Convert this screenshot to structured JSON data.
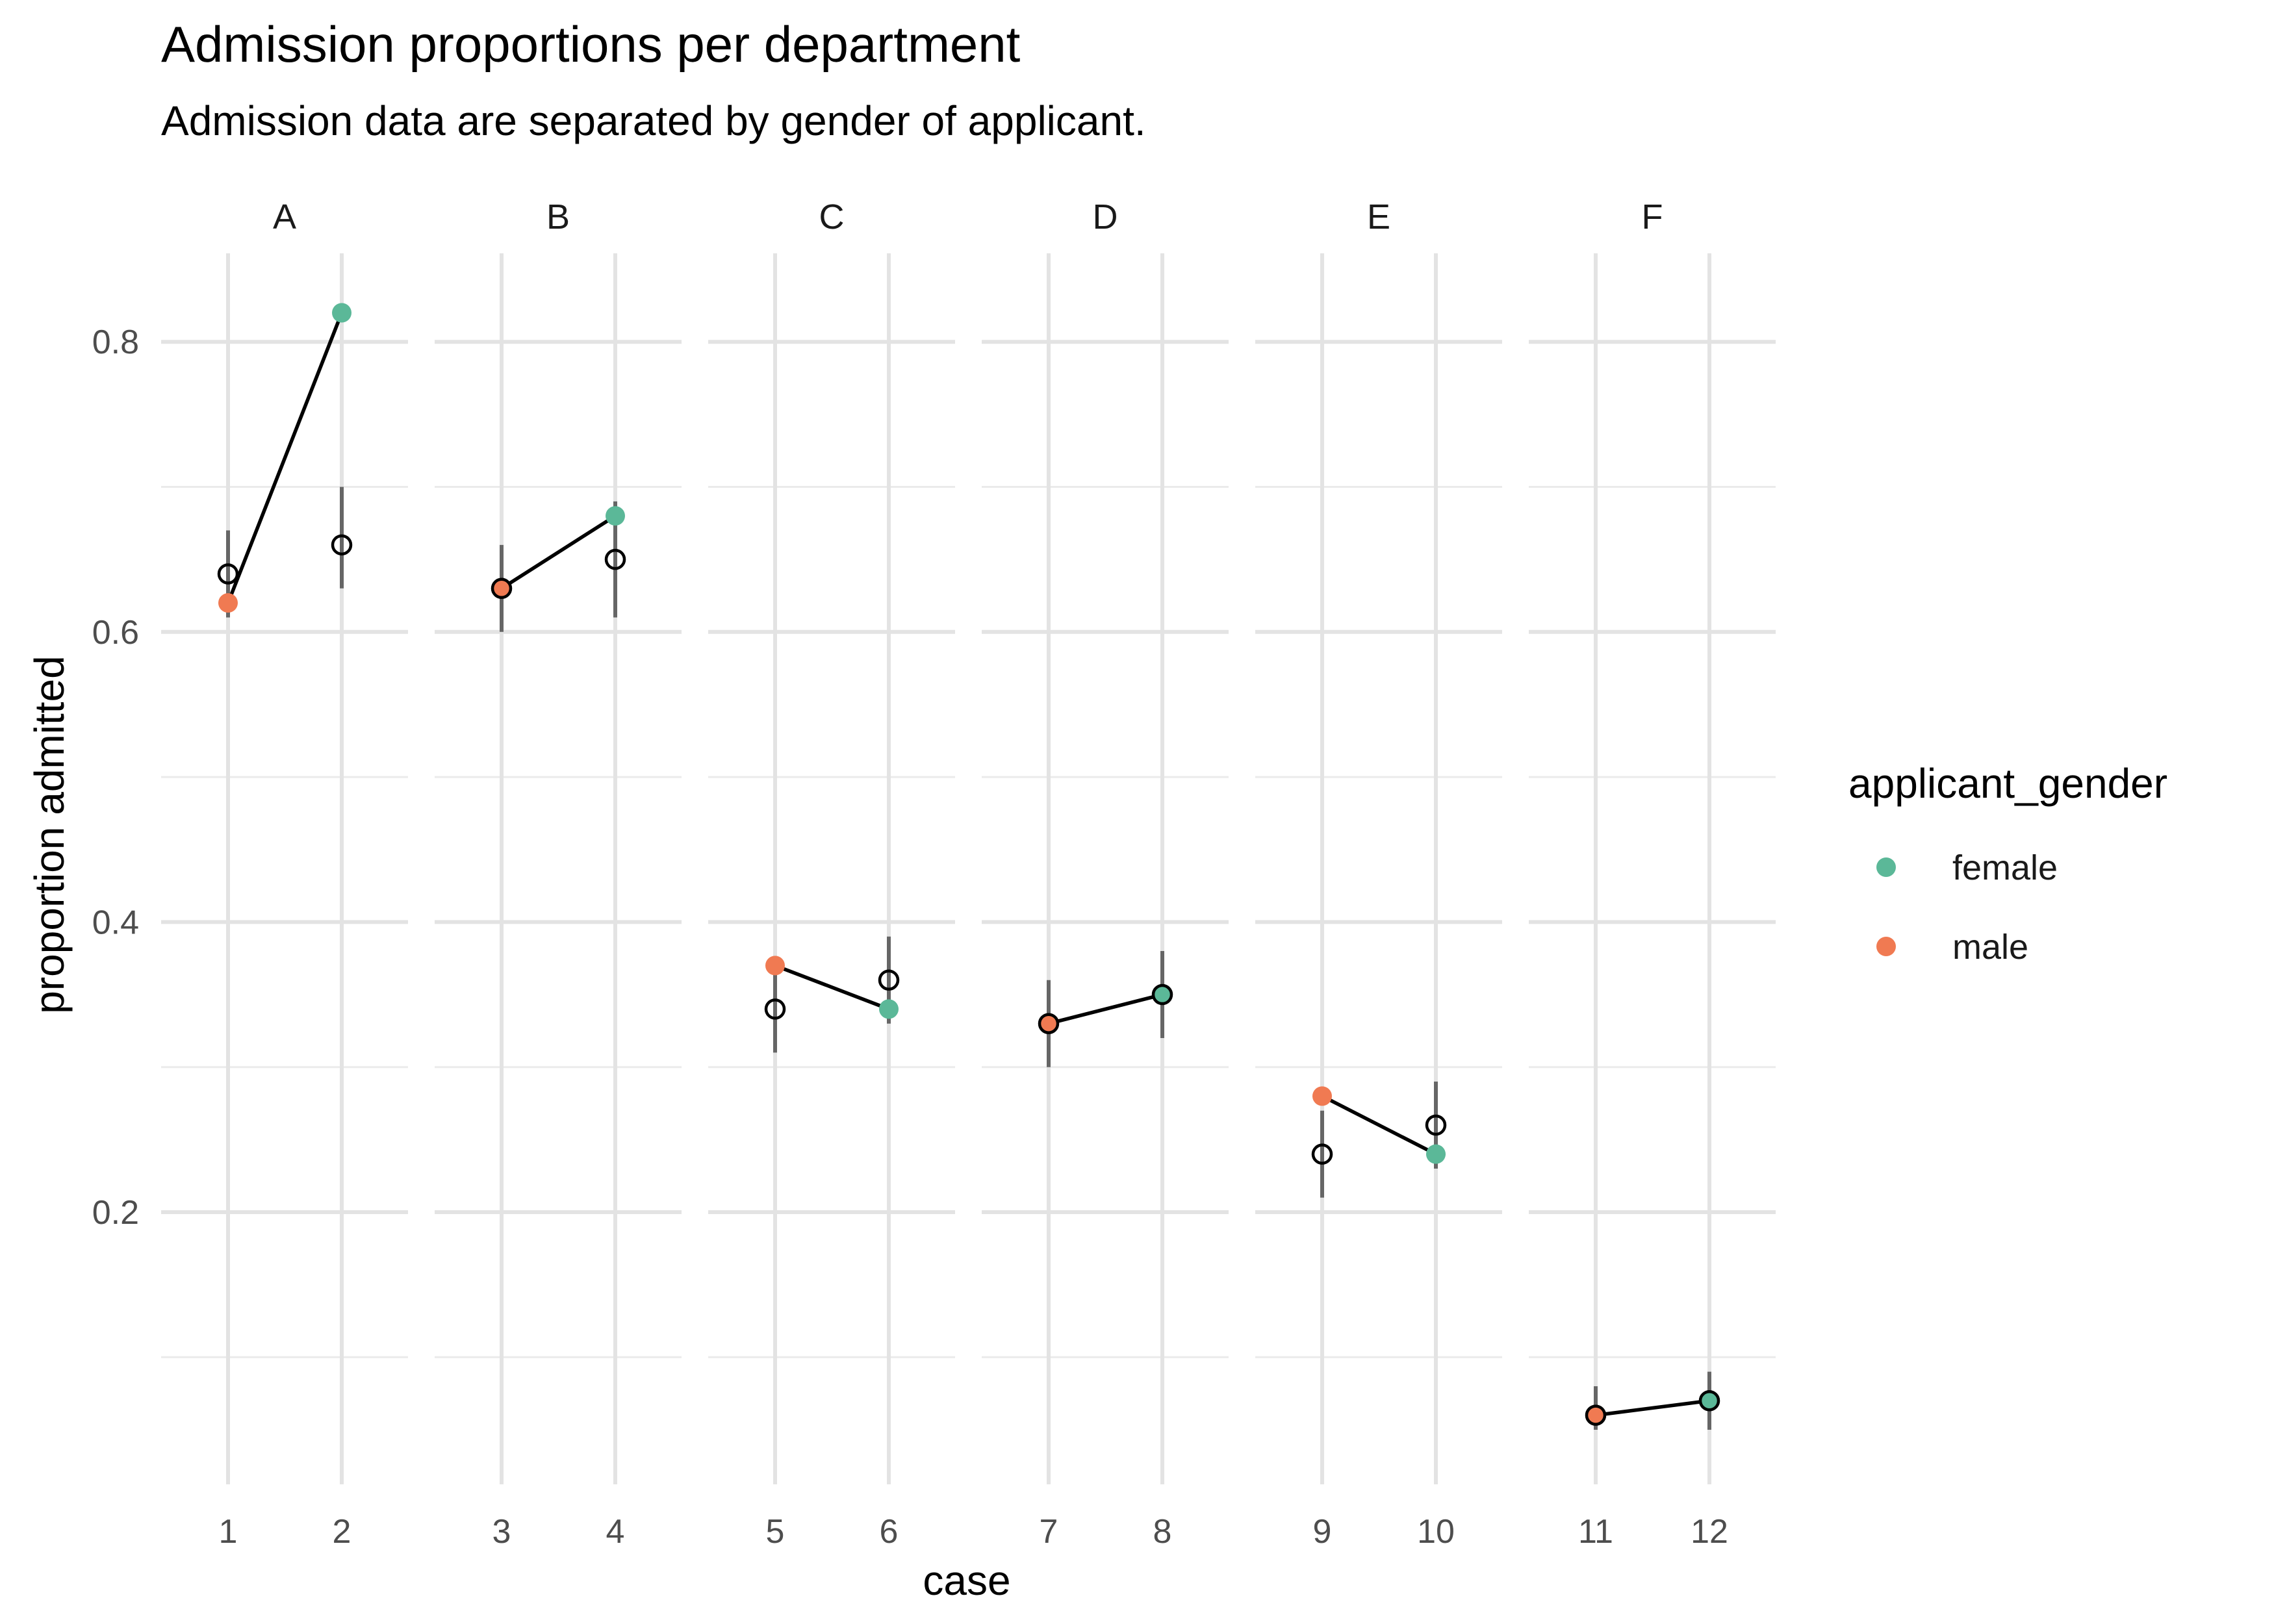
{
  "chart_data": {
    "type": "scatter",
    "title": "Admission proportions per department",
    "subtitle": "Admission data are separated by gender of applicant.",
    "xlabel": "case",
    "ylabel": "proportion admitted",
    "ylim": [
      0.03,
      0.87
    ],
    "y_ticks": [
      0.2,
      0.4,
      0.6,
      0.8
    ],
    "y_tick_labels": [
      "0.2",
      "0.4",
      "0.6",
      "0.8"
    ],
    "grid": true,
    "legend": {
      "title": "applicant_gender",
      "position": "right",
      "entries": [
        {
          "label": "female",
          "color": "#5BB898"
        },
        {
          "label": "male",
          "color": "#F07A52"
        }
      ]
    },
    "facets": [
      {
        "label": "A",
        "cases": [
          1,
          2
        ]
      },
      {
        "label": "B",
        "cases": [
          3,
          4
        ]
      },
      {
        "label": "C",
        "cases": [
          5,
          6
        ]
      },
      {
        "label": "D",
        "cases": [
          7,
          8
        ]
      },
      {
        "label": "E",
        "cases": [
          9,
          10
        ]
      },
      {
        "label": "F",
        "cases": [
          11,
          12
        ]
      }
    ],
    "observed": [
      {
        "case": 1,
        "gender": "male",
        "value": 0.62
      },
      {
        "case": 2,
        "gender": "female",
        "value": 0.82
      },
      {
        "case": 3,
        "gender": "male",
        "value": 0.63
      },
      {
        "case": 4,
        "gender": "female",
        "value": 0.68
      },
      {
        "case": 5,
        "gender": "male",
        "value": 0.37
      },
      {
        "case": 6,
        "gender": "female",
        "value": 0.34
      },
      {
        "case": 7,
        "gender": "male",
        "value": 0.33
      },
      {
        "case": 8,
        "gender": "female",
        "value": 0.35
      },
      {
        "case": 9,
        "gender": "male",
        "value": 0.28
      },
      {
        "case": 10,
        "gender": "female",
        "value": 0.24
      },
      {
        "case": 11,
        "gender": "male",
        "value": 0.06
      },
      {
        "case": 12,
        "gender": "female",
        "value": 0.07
      }
    ],
    "predicted": [
      {
        "case": 1,
        "mean": 0.64,
        "lower": 0.61,
        "upper": 0.67
      },
      {
        "case": 2,
        "mean": 0.66,
        "lower": 0.63,
        "upper": 0.7
      },
      {
        "case": 3,
        "mean": 0.63,
        "lower": 0.6,
        "upper": 0.66
      },
      {
        "case": 4,
        "mean": 0.65,
        "lower": 0.61,
        "upper": 0.69
      },
      {
        "case": 5,
        "mean": 0.34,
        "lower": 0.31,
        "upper": 0.37
      },
      {
        "case": 6,
        "mean": 0.36,
        "lower": 0.33,
        "upper": 0.39
      },
      {
        "case": 7,
        "mean": 0.33,
        "lower": 0.3,
        "upper": 0.36
      },
      {
        "case": 8,
        "mean": 0.35,
        "lower": 0.32,
        "upper": 0.38
      },
      {
        "case": 9,
        "mean": 0.24,
        "lower": 0.21,
        "upper": 0.27
      },
      {
        "case": 10,
        "mean": 0.26,
        "lower": 0.23,
        "upper": 0.29
      },
      {
        "case": 11,
        "mean": 0.06,
        "lower": 0.05,
        "upper": 0.08
      },
      {
        "case": 12,
        "mean": 0.07,
        "lower": 0.05,
        "upper": 0.09
      }
    ]
  }
}
